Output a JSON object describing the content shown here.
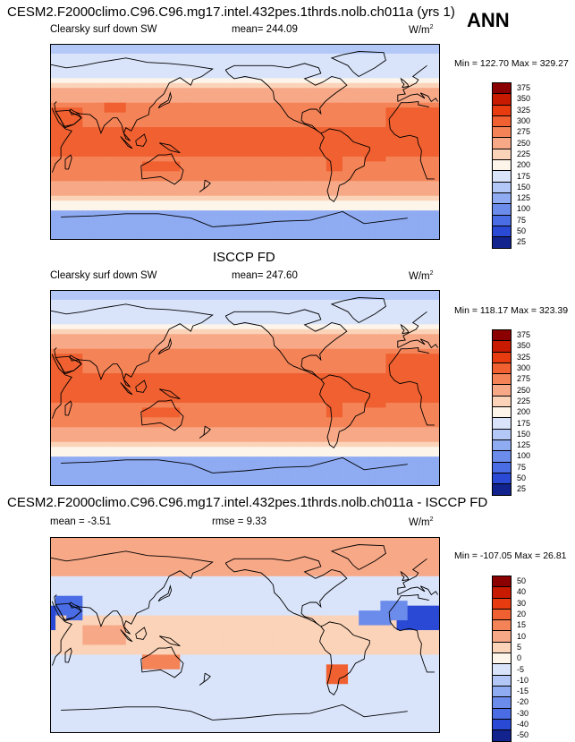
{
  "header": {
    "title": "CESM2.F2000climo.C96.C96.mg17.intel.432pes.1thrds.nolb.ch011a (yrs 1)",
    "season": "ANN"
  },
  "chart_data": [
    {
      "type": "heatmap",
      "map_projection": "global cylindrical equidistant",
      "title": "CESM2.F2000climo.C96.C96.mg17.intel.432pes.1thrds.nolb.ch011a (yrs 1)",
      "variable": "Clearsky surf down SW",
      "mean_label": "mean= 244.09",
      "units_base": "W/m",
      "units_exp": "2",
      "minmax": "Min = 122.70 Max = 329.27",
      "min": 122.7,
      "max": 329.27,
      "mean": 244.09,
      "colorbar_levels": [
        "375",
        "350",
        "325",
        "300",
        "275",
        "250",
        "225",
        "200",
        "175",
        "150",
        "125",
        "100",
        "75",
        "50",
        "25"
      ],
      "colorbar_colors": [
        "#8b0000",
        "#c81a00",
        "#e83c10",
        "#f06030",
        "#f48458",
        "#f7a887",
        "#fbd3b8",
        "#fdf4ea",
        "#d9e4fa",
        "#b3c8f7",
        "#8fabf2",
        "#6c8cec",
        "#4a6ce4",
        "#2a49d4",
        "#12238e"
      ]
    },
    {
      "type": "heatmap",
      "map_projection": "global cylindrical equidistant",
      "title": "ISCCP FD",
      "variable": "Clearsky surf down SW",
      "mean_label": "mean= 247.60",
      "units_base": "W/m",
      "units_exp": "2",
      "minmax": "Min = 118.17 Max = 323.39",
      "min": 118.17,
      "max": 323.39,
      "mean": 247.6,
      "colorbar_levels": [
        "375",
        "350",
        "325",
        "300",
        "275",
        "250",
        "225",
        "200",
        "175",
        "150",
        "125",
        "100",
        "75",
        "50",
        "25"
      ],
      "colorbar_colors": [
        "#8b0000",
        "#c81a00",
        "#e83c10",
        "#f06030",
        "#f48458",
        "#f7a887",
        "#fbd3b8",
        "#fdf4ea",
        "#d9e4fa",
        "#b3c8f7",
        "#8fabf2",
        "#6c8cec",
        "#4a6ce4",
        "#2a49d4",
        "#12238e"
      ]
    },
    {
      "type": "heatmap",
      "map_projection": "global cylindrical equidistant",
      "title": "CESM2.F2000climo.C96.C96.mg17.intel.432pes.1thrds.nolb.ch011a - ISCCP FD",
      "mean_label": "mean =  -3.51",
      "rmse_label": "rmse =   9.33",
      "units_base": "W/m",
      "units_exp": "2",
      "minmax": "Min = -107.05 Max =  26.81",
      "min": -107.05,
      "max": 26.81,
      "mean": -3.51,
      "rmse": 9.33,
      "colorbar_levels": [
        "50",
        "40",
        "30",
        "20",
        "15",
        "10",
        "5",
        "0",
        "-5",
        "-10",
        "-15",
        "-20",
        "-30",
        "-40",
        "-50"
      ],
      "colorbar_colors": [
        "#8b0000",
        "#c81a00",
        "#e83c10",
        "#f06030",
        "#f48458",
        "#f7a887",
        "#fbd3b8",
        "#fdf4ea",
        "#d9e4fa",
        "#b3c8f7",
        "#8fabf2",
        "#6c8cec",
        "#4a6ce4",
        "#2a49d4",
        "#12238e"
      ]
    }
  ]
}
